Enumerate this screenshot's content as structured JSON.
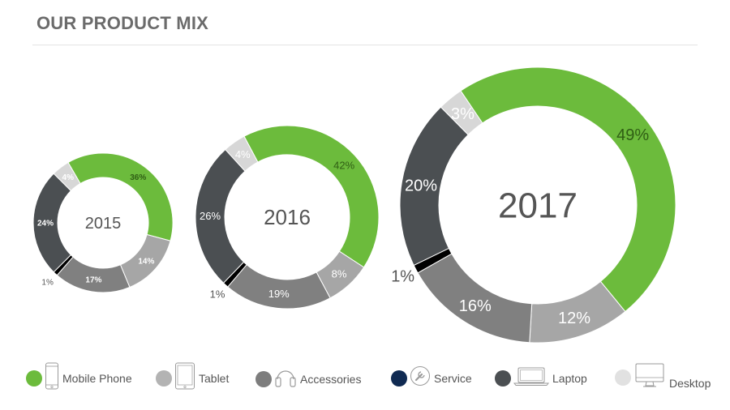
{
  "page": {
    "title": "OUR PRODUCT MIX"
  },
  "colors": {
    "mobile_phone": "#6cbb3c",
    "tablet": "#a6a6a6",
    "accessories": "#808080",
    "service": "#000000",
    "laptop": "#4b4f52",
    "desktop": "#d7d7d7",
    "service_dot": "#102a52",
    "desktop_dot": "#e1e1e1",
    "tablet_dot": "#b3b3b3",
    "accessories_dot": "#7d7d7d",
    "laptop_dot": "#4b4f52",
    "mobile_dot": "#6cbb3c"
  },
  "chart_data": [
    {
      "type": "pie",
      "variant": "donut",
      "center_label": "2015",
      "categories": [
        "Mobile Phone",
        "Tablet",
        "Accessories",
        "Service",
        "Laptop",
        "Desktop"
      ],
      "values": [
        36,
        14,
        17,
        1,
        24,
        4
      ],
      "labels": [
        "36%",
        "14%",
        "17%",
        "1%",
        "24%",
        "4%"
      ]
    },
    {
      "type": "pie",
      "variant": "donut",
      "center_label": "2016",
      "categories": [
        "Mobile Phone",
        "Tablet",
        "Accessories",
        "Service",
        "Laptop",
        "Desktop"
      ],
      "values": [
        42,
        8,
        19,
        1,
        26,
        4
      ],
      "labels": [
        "42%",
        "8%",
        "19%",
        "1%",
        "26%",
        "4%"
      ]
    },
    {
      "type": "pie",
      "variant": "donut",
      "center_label": "2017",
      "categories": [
        "Mobile Phone",
        "Tablet",
        "Accessories",
        "Service",
        "Laptop",
        "Desktop"
      ],
      "values": [
        49,
        12,
        16,
        1,
        20,
        3
      ],
      "labels": [
        "49%",
        "12%",
        "16%",
        "1%",
        "20%",
        "3%"
      ]
    }
  ],
  "legend": {
    "items": [
      {
        "label": "Mobile Phone",
        "icon": "mobile-phone-icon"
      },
      {
        "label": "Tablet",
        "icon": "tablet-icon"
      },
      {
        "label": "Accessories",
        "icon": "headphones-icon"
      },
      {
        "label": "Service",
        "icon": "wrench-icon"
      },
      {
        "label": "Laptop",
        "icon": "laptop-icon"
      },
      {
        "label": "Desktop",
        "icon": "desktop-icon"
      }
    ]
  }
}
